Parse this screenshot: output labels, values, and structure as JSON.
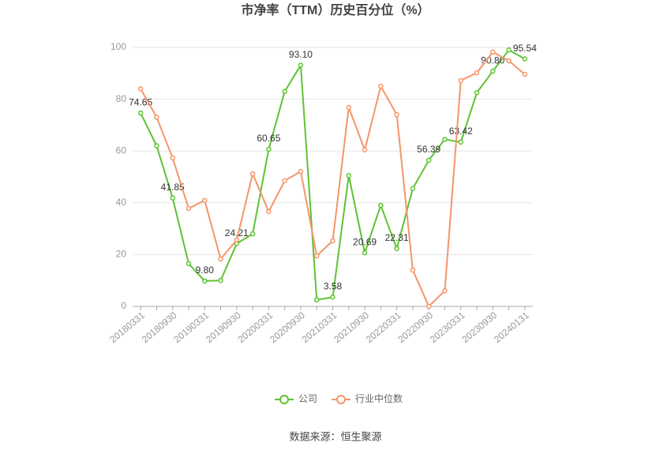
{
  "chart_data": {
    "type": "line",
    "title": "市净率（TTM）历史百分位（%）",
    "source": "数据来源：恒生聚源",
    "categories": [
      "20180331",
      null,
      "20180930",
      null,
      "20190331",
      null,
      "20190930",
      null,
      "20200331",
      null,
      "20200930",
      null,
      "20210331",
      null,
      "20210930",
      null,
      "20220331",
      null,
      "20220930",
      null,
      "20230331",
      null,
      "20230930",
      null,
      "20240131"
    ],
    "series": [
      {
        "name": "公司",
        "color": "#5fc233",
        "values": [
          74.65,
          62,
          41.85,
          16.5,
          9.8,
          10,
          24.21,
          28,
          60.65,
          83,
          93.1,
          2.5,
          3.58,
          50.5,
          20.69,
          39,
          22.31,
          45.5,
          56.39,
          64.5,
          63.42,
          82.5,
          90.8,
          99,
          95.54
        ],
        "value_labels": [
          "74.65",
          null,
          "41.85",
          null,
          "9.80",
          null,
          "24.21",
          null,
          "60.65",
          null,
          "93.10",
          null,
          "3.58",
          null,
          "20.69",
          null,
          "22.31",
          null,
          "56.39",
          null,
          "63.42",
          null,
          "90.80",
          null,
          "95.54"
        ]
      },
      {
        "name": "行业中位数",
        "color": "#f4956b",
        "values": [
          84,
          73,
          57.3,
          37.8,
          40.9,
          18.3,
          25.6,
          51.2,
          36.6,
          48.5,
          52.1,
          19.5,
          25.3,
          76.8,
          60.4,
          85,
          74,
          14,
          0,
          6,
          87.2,
          90.2,
          98.2,
          94.8,
          89.6
        ]
      }
    ],
    "ylim": [
      0,
      100
    ],
    "yticks": [
      0,
      20,
      40,
      60,
      80,
      100
    ],
    "grid": true,
    "legend": "bottom"
  }
}
